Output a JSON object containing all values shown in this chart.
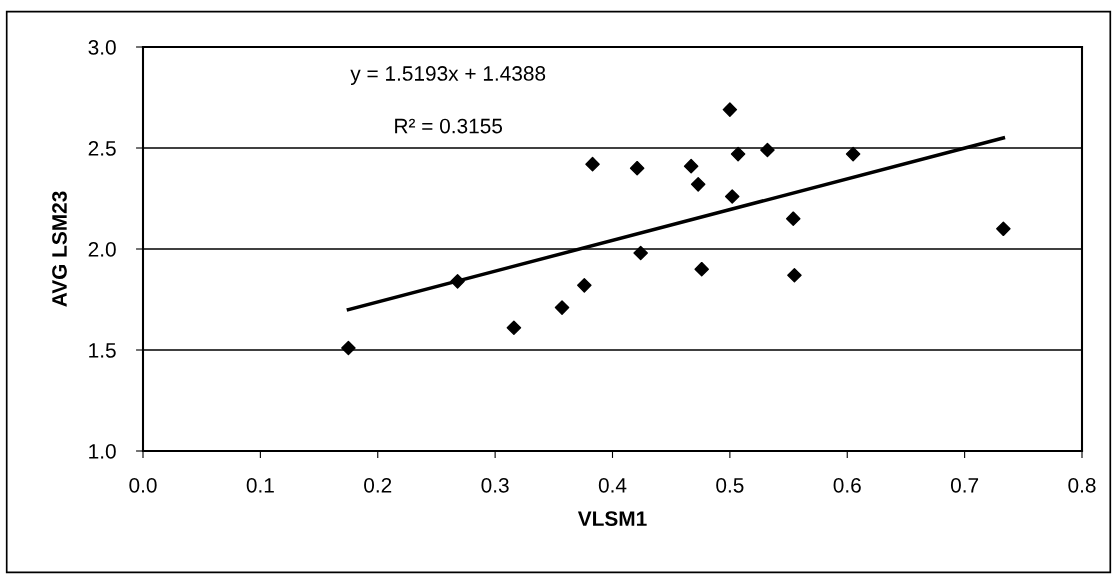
{
  "chart_data": {
    "type": "scatter",
    "xlabel": "VLSM1",
    "ylabel": "AVG LSM23",
    "series": [
      {
        "color": "#000000",
        "marker": "diamond",
        "x": [
          0.175,
          0.268,
          0.316,
          0.357,
          0.376,
          0.383,
          0.421,
          0.424,
          0.467,
          0.473,
          0.476,
          0.5,
          0.502,
          0.507,
          0.532,
          0.554,
          0.555,
          0.605,
          0.733
        ],
        "values": [
          1.51,
          1.84,
          1.61,
          1.71,
          1.82,
          2.42,
          2.4,
          1.98,
          2.41,
          2.32,
          1.9,
          2.69,
          2.26,
          2.47,
          2.49,
          2.15,
          1.87,
          2.47,
          2.1
        ]
      },
      {
        "type": "line",
        "color": "#000000",
        "marker": "none",
        "x": [
          0.175,
          0.733
        ],
        "values": [
          1.7,
          2.55
        ]
      }
    ],
    "annotations": [
      "y = 1.5193x + 1.4388",
      "R² = 0.3155"
    ],
    "xlim": [
      0.0,
      0.8
    ],
    "xticks": [
      {
        "value": 0.0,
        "label": "0.0"
      },
      {
        "value": 0.1,
        "label": "0.1"
      },
      {
        "value": 0.2,
        "label": "0.2"
      },
      {
        "value": 0.3,
        "label": "0.3"
      },
      {
        "value": 0.4,
        "label": "0.4"
      },
      {
        "value": 0.5,
        "label": "0.5"
      },
      {
        "value": 0.6,
        "label": "0.6"
      },
      {
        "value": 0.7,
        "label": "0.7"
      },
      {
        "value": 0.8,
        "label": "0.8"
      }
    ],
    "ylim": [
      1.0,
      3.0
    ],
    "yticks": [
      {
        "value": 1.0,
        "label": "1.0"
      },
      {
        "value": 1.5,
        "label": "1.5"
      },
      {
        "value": 2.0,
        "label": "2.0"
      },
      {
        "value": 2.5,
        "label": "2.5"
      },
      {
        "value": 3.0,
        "label": "3.0"
      }
    ],
    "grid": "y",
    "legend": false
  }
}
